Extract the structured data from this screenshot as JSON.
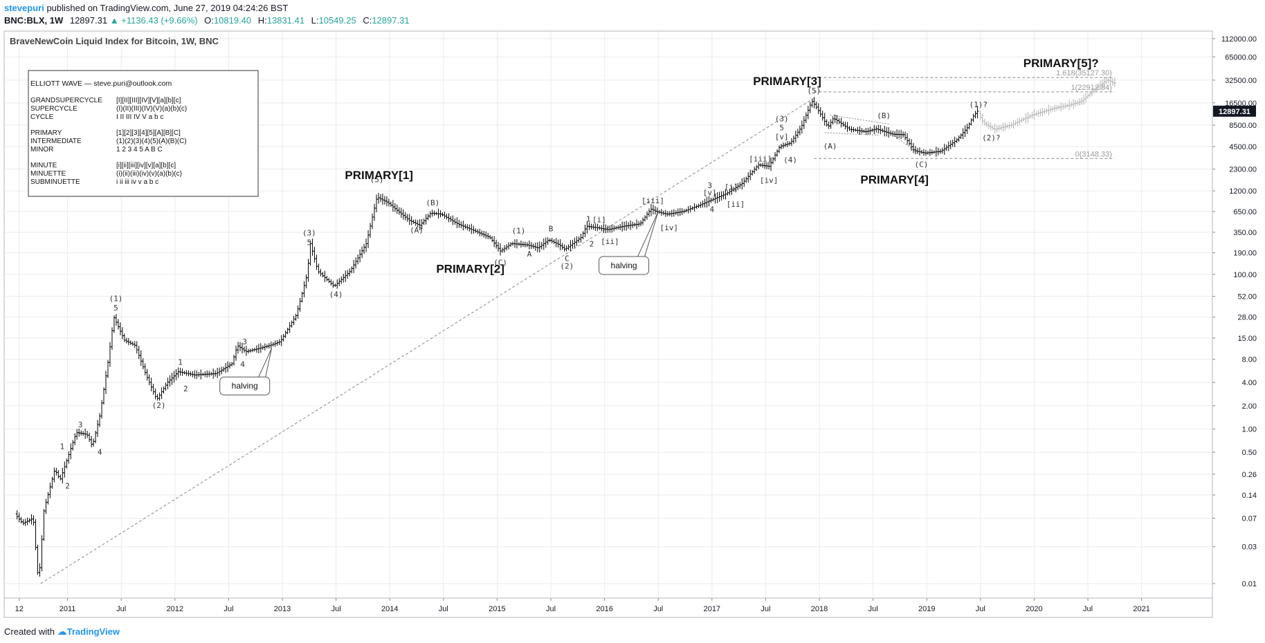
{
  "header": {
    "author": "stevepuri",
    "published": "published on TradingView.com, June 27, 2019 04:24:26 BST",
    "symbol": "BNC:BLX, 1W",
    "last": "12897.31",
    "change": "+1136.43 (+9.66%)",
    "open_label": "O:",
    "open": "10819.40",
    "high_label": "H:",
    "high": "13831.41",
    "low_label": "L:",
    "low": "10549.25",
    "close_label": "C:",
    "close": "12897.31"
  },
  "footer": {
    "created_with": "Created with",
    "brand": "TradingView"
  },
  "colors": {
    "accent": "#2196f3",
    "up": "#26a69a",
    "bar": "#000000",
    "projection": "#b0b0b0",
    "grid": "#ebebeb"
  },
  "chart_data": {
    "type": "ohlc-bar",
    "title": "BraveNewCoin Liquid Index for Bitcoin, 1W, BNC",
    "log_scale": true,
    "ylim": [
      0.0065,
      140000
    ],
    "y_ticks": [
      112000,
      65000,
      32500,
      16500,
      8500,
      4500,
      2300,
      1200,
      650,
      350,
      190,
      100,
      52,
      28,
      15,
      8,
      4,
      2,
      1,
      0.5,
      0.26,
      0.14,
      0.07,
      0.03,
      0.01
    ],
    "y_tick_labels": [
      "112000.00",
      "65000.00",
      "32500.00",
      "16500.00",
      "8500.00",
      "4500.00",
      "2300.00",
      "1200.00",
      "650.00",
      "350.00",
      "190.00",
      "100.00",
      "52.00",
      "28.00",
      "15.00",
      "8.00",
      "4.00",
      "2.00",
      "1.00",
      "0.50",
      "0.26",
      "0.14",
      "0.07",
      "0.03",
      "0.01"
    ],
    "last_price_label": "12897.31",
    "last_price": 12897.31,
    "xlim": [
      2010.5,
      2021.55
    ],
    "x_ticks": [
      {
        "t": 2010.55,
        "label": "12"
      },
      {
        "t": 2011.0,
        "label": "2011"
      },
      {
        "t": 2011.5,
        "label": "Jul"
      },
      {
        "t": 2012.0,
        "label": "2012"
      },
      {
        "t": 2012.5,
        "label": "Jul"
      },
      {
        "t": 2013.0,
        "label": "2013"
      },
      {
        "t": 2013.5,
        "label": "Jul"
      },
      {
        "t": 2014.0,
        "label": "2014"
      },
      {
        "t": 2014.5,
        "label": "Jul"
      },
      {
        "t": 2015.0,
        "label": "2015"
      },
      {
        "t": 2015.5,
        "label": "Jul"
      },
      {
        "t": 2016.0,
        "label": "2016"
      },
      {
        "t": 2016.5,
        "label": "Jul"
      },
      {
        "t": 2017.0,
        "label": "2017"
      },
      {
        "t": 2017.5,
        "label": "Jul"
      },
      {
        "t": 2018.0,
        "label": "2018"
      },
      {
        "t": 2018.5,
        "label": "Jul"
      },
      {
        "t": 2019.0,
        "label": "2019"
      },
      {
        "t": 2019.5,
        "label": "Jul"
      },
      {
        "t": 2020.0,
        "label": "2020"
      },
      {
        "t": 2020.5,
        "label": "Jul"
      },
      {
        "t": 2021.0,
        "label": "2021"
      }
    ],
    "price_path": [
      [
        2010.53,
        0.08
      ],
      [
        2010.6,
        0.06
      ],
      [
        2010.7,
        0.07
      ],
      [
        2010.75,
        0.01
      ],
      [
        2010.8,
        0.09
      ],
      [
        2010.9,
        0.3
      ],
      [
        2010.95,
        0.22
      ],
      [
        2011.1,
        0.9
      ],
      [
        2011.2,
        0.85
      ],
      [
        2011.25,
        0.6
      ],
      [
        2011.32,
        1.5
      ],
      [
        2011.4,
        8
      ],
      [
        2011.45,
        28
      ],
      [
        2011.55,
        14
      ],
      [
        2011.65,
        12
      ],
      [
        2011.75,
        5
      ],
      [
        2011.85,
        2.4
      ],
      [
        2011.95,
        4
      ],
      [
        2012.05,
        5.5
      ],
      [
        2012.2,
        5
      ],
      [
        2012.4,
        5.2
      ],
      [
        2012.55,
        7
      ],
      [
        2012.6,
        12
      ],
      [
        2012.68,
        10
      ],
      [
        2012.8,
        11
      ],
      [
        2012.9,
        12
      ],
      [
        2013.0,
        13.5
      ],
      [
        2013.15,
        30
      ],
      [
        2013.25,
        100
      ],
      [
        2013.28,
        250
      ],
      [
        2013.35,
        110
      ],
      [
        2013.5,
        70
      ],
      [
        2013.65,
        110
      ],
      [
        2013.8,
        250
      ],
      [
        2013.9,
        1000
      ],
      [
        2014.0,
        850
      ],
      [
        2014.1,
        650
      ],
      [
        2014.2,
        500
      ],
      [
        2014.3,
        430
      ],
      [
        2014.4,
        620
      ],
      [
        2014.5,
        600
      ],
      [
        2014.65,
        450
      ],
      [
        2014.8,
        370
      ],
      [
        2014.95,
        300
      ],
      [
        2015.05,
        200
      ],
      [
        2015.15,
        250
      ],
      [
        2015.3,
        240
      ],
      [
        2015.4,
        220
      ],
      [
        2015.5,
        280
      ],
      [
        2015.6,
        240
      ],
      [
        2015.65,
        210
      ],
      [
        2015.8,
        300
      ],
      [
        2015.85,
        420
      ],
      [
        2015.95,
        400
      ],
      [
        2016.05,
        380
      ],
      [
        2016.2,
        420
      ],
      [
        2016.35,
        450
      ],
      [
        2016.45,
        700
      ],
      [
        2016.5,
        650
      ],
      [
        2016.6,
        600
      ],
      [
        2016.75,
        650
      ],
      [
        2016.9,
        780
      ],
      [
        2017.0,
        900
      ],
      [
        2017.15,
        1100
      ],
      [
        2017.3,
        1500
      ],
      [
        2017.45,
        2600
      ],
      [
        2017.55,
        2500
      ],
      [
        2017.65,
        4500
      ],
      [
        2017.75,
        5000
      ],
      [
        2017.85,
        8000
      ],
      [
        2017.95,
        17500
      ],
      [
        2018.0,
        14000
      ],
      [
        2018.1,
        8000
      ],
      [
        2018.15,
        10500
      ],
      [
        2018.3,
        7500
      ],
      [
        2018.45,
        7000
      ],
      [
        2018.55,
        7600
      ],
      [
        2018.7,
        6500
      ],
      [
        2018.8,
        6400
      ],
      [
        2018.9,
        4000
      ],
      [
        2019.0,
        3700
      ],
      [
        2019.15,
        3900
      ],
      [
        2019.3,
        5500
      ],
      [
        2019.4,
        8000
      ],
      [
        2019.45,
        11000
      ],
      [
        2019.49,
        12897.31
      ]
    ],
    "projection_path": [
      [
        2019.5,
        12000
      ],
      [
        2019.55,
        9000
      ],
      [
        2019.65,
        7500
      ],
      [
        2019.8,
        8500
      ],
      [
        2020.0,
        11500
      ],
      [
        2020.2,
        14000
      ],
      [
        2020.35,
        15500
      ],
      [
        2020.45,
        17000
      ],
      [
        2020.6,
        26000
      ],
      [
        2020.7,
        33000
      ],
      [
        2020.75,
        30000
      ]
    ],
    "lines": [
      {
        "kind": "trendline",
        "from": [
          2010.75,
          0.01
        ],
        "to": [
          2017.95,
          19000
        ]
      },
      {
        "kind": "level",
        "from": [
          2017.95,
          35127.3
        ],
        "to": [
          2020.75,
          35127.3
        ],
        "label": "1.618(35127.30)"
      },
      {
        "kind": "level",
        "from": [
          2017.95,
          22912.84
        ],
        "to": [
          2020.75,
          22912.84
        ],
        "label": "1(22912.84)"
      },
      {
        "kind": "level",
        "from": [
          2017.95,
          3148.33
        ],
        "to": [
          2020.75,
          3148.33
        ],
        "label": "0(3148.33)"
      },
      {
        "kind": "channel",
        "from": [
          2018.1,
          11500
        ],
        "to": [
          2018.65,
          8800
        ]
      },
      {
        "kind": "channel",
        "from": [
          2018.05,
          6800
        ],
        "to": [
          2018.55,
          6300
        ]
      },
      {
        "kind": "channel",
        "from": [
          2018.7,
          6200
        ],
        "to": [
          2018.95,
          3400
        ]
      }
    ],
    "primary_labels": [
      {
        "text": "PRIMARY[1]",
        "t": 2013.9,
        "y": 1700
      },
      {
        "text": "PRIMARY[2]",
        "t": 2014.75,
        "y": 105
      },
      {
        "text": "PRIMARY[3]",
        "t": 2017.7,
        "y": 28000
      },
      {
        "text": "PRIMARY[4]",
        "t": 2018.7,
        "y": 1500
      },
      {
        "text": "PRIMARY[5]?",
        "t": 2020.25,
        "y": 48000
      }
    ],
    "wave_labels": [
      {
        "text": "1",
        "t": 2010.95,
        "y": 0.55,
        "pos": "above"
      },
      {
        "text": "2",
        "t": 2011.0,
        "y": 0.2,
        "pos": "below"
      },
      {
        "text": "3",
        "t": 2011.12,
        "y": 1.05,
        "pos": "above"
      },
      {
        "text": "4",
        "t": 2011.3,
        "y": 0.55,
        "pos": "below"
      },
      {
        "text": "(1)",
        "t": 2011.45,
        "y": 45,
        "pos": "above"
      },
      {
        "text": "5",
        "t": 2011.45,
        "y": 34,
        "pos": "above"
      },
      {
        "text": "(2)",
        "t": 2011.85,
        "y": 2.2,
        "pos": "below"
      },
      {
        "text": "1",
        "t": 2012.05,
        "y": 6.8,
        "pos": "above"
      },
      {
        "text": "2",
        "t": 2012.1,
        "y": 3.6,
        "pos": "below"
      },
      {
        "text": "3",
        "t": 2012.65,
        "y": 12.5,
        "pos": "above"
      },
      {
        "text": "4",
        "t": 2012.63,
        "y": 7.5,
        "pos": "below"
      },
      {
        "text": "(3)",
        "t": 2013.25,
        "y": 320,
        "pos": "above"
      },
      {
        "text": "5",
        "t": 2013.25,
        "y": 240,
        "pos": "above"
      },
      {
        "text": "(4)",
        "t": 2013.5,
        "y": 60,
        "pos": "below"
      },
      {
        "text": "(5)",
        "t": 2013.88,
        "y": 1550,
        "pos": "above"
      },
      {
        "text": "(A)",
        "t": 2014.25,
        "y": 410,
        "pos": "below"
      },
      {
        "text": "(B)",
        "t": 2014.4,
        "y": 780,
        "pos": "above"
      },
      {
        "text": "(C)",
        "t": 2015.03,
        "y": 155,
        "pos": "below"
      },
      {
        "text": "(1)",
        "t": 2015.2,
        "y": 340,
        "pos": "above"
      },
      {
        "text": "A",
        "t": 2015.3,
        "y": 200,
        "pos": "below"
      },
      {
        "text": "B",
        "t": 2015.5,
        "y": 360,
        "pos": "above"
      },
      {
        "text": "C",
        "t": 2015.65,
        "y": 175,
        "pos": "below"
      },
      {
        "text": "(2)",
        "t": 2015.65,
        "y": 140,
        "pos": "below"
      },
      {
        "text": "1",
        "t": 2015.85,
        "y": 480,
        "pos": "above"
      },
      {
        "text": "2",
        "t": 2015.88,
        "y": 270,
        "pos": "below"
      },
      {
        "text": "[i]",
        "t": 2015.95,
        "y": 470,
        "pos": "above"
      },
      {
        "text": "[ii]",
        "t": 2016.05,
        "y": 290,
        "pos": "below"
      },
      {
        "text": "[iii]",
        "t": 2016.45,
        "y": 830,
        "pos": "above"
      },
      {
        "text": "[iv]",
        "t": 2016.6,
        "y": 440,
        "pos": "below"
      },
      {
        "text": "3",
        "t": 2016.98,
        "y": 1300,
        "pos": "above"
      },
      {
        "text": "[v]",
        "t": 2016.98,
        "y": 1050,
        "pos": "above"
      },
      {
        "text": "4",
        "t": 2017.0,
        "y": 760,
        "pos": "below"
      },
      {
        "text": "[i]",
        "t": 2017.18,
        "y": 1250,
        "pos": "above"
      },
      {
        "text": "[ii]",
        "t": 2017.22,
        "y": 880,
        "pos": "below"
      },
      {
        "text": "[iii]",
        "t": 2017.45,
        "y": 2900,
        "pos": "above"
      },
      {
        "text": "[iv]",
        "t": 2017.53,
        "y": 1800,
        "pos": "below"
      },
      {
        "text": "(3)",
        "t": 2017.65,
        "y": 9500,
        "pos": "above"
      },
      {
        "text": "5",
        "t": 2017.65,
        "y": 7300,
        "pos": "above"
      },
      {
        "text": "[v]",
        "t": 2017.65,
        "y": 5600,
        "pos": "above"
      },
      {
        "text": "(4)",
        "t": 2017.73,
        "y": 3300,
        "pos": "below"
      },
      {
        "text": "(5)",
        "t": 2017.95,
        "y": 22000,
        "pos": "above"
      },
      {
        "text": "(A)",
        "t": 2018.1,
        "y": 5000,
        "pos": "below"
      },
      {
        "text": "(B)",
        "t": 2018.6,
        "y": 10500,
        "pos": "above"
      },
      {
        "text": "(C)",
        "t": 2018.95,
        "y": 2900,
        "pos": "below"
      },
      {
        "text": "(1)?",
        "t": 2019.48,
        "y": 14500,
        "pos": "above"
      },
      {
        "text": "(2)?",
        "t": 2019.6,
        "y": 6400,
        "pos": "below"
      }
    ],
    "callouts": [
      {
        "text": "halving",
        "box_t": 2012.65,
        "box_y": 3.6,
        "target_t": 2012.9,
        "target_y": 11
      },
      {
        "text": "halving",
        "box_t": 2016.18,
        "box_y": 130,
        "target_t": 2016.5,
        "target_y": 650
      }
    ]
  },
  "legend_box": {
    "title": "ELLIOTT WAVE — steve.puri@outlook.com",
    "groups": [
      [
        [
          "GRANDSUPERCYCLE",
          "[I][II][III][IV][V][a][b][c]"
        ],
        [
          "SUPERCYCLE",
          "(I)(II)(III)(IV)(V)(a)(b)(c)"
        ],
        [
          "CYCLE",
          " I  II  III  IV  V  a  b  c"
        ]
      ],
      [
        [
          "PRIMARY",
          "[1][2][3][4][5][A][B][C]"
        ],
        [
          "INTERMEDIATE",
          "(1)(2)(3)(4)(5)(A)(B)(C)"
        ],
        [
          "MINOR",
          " 1  2  3  4  5  A  B  C"
        ]
      ],
      [
        [
          "MINUTE",
          "[i][ii][iii][iv][v][a][b][c]"
        ],
        [
          "MINUETTE",
          "(i)(ii)(iii)(iv)(v)(a)(b)(c)"
        ],
        [
          "SUBMINUETTE",
          " i  ii  iii  iv  v  a  b  c"
        ]
      ]
    ]
  }
}
